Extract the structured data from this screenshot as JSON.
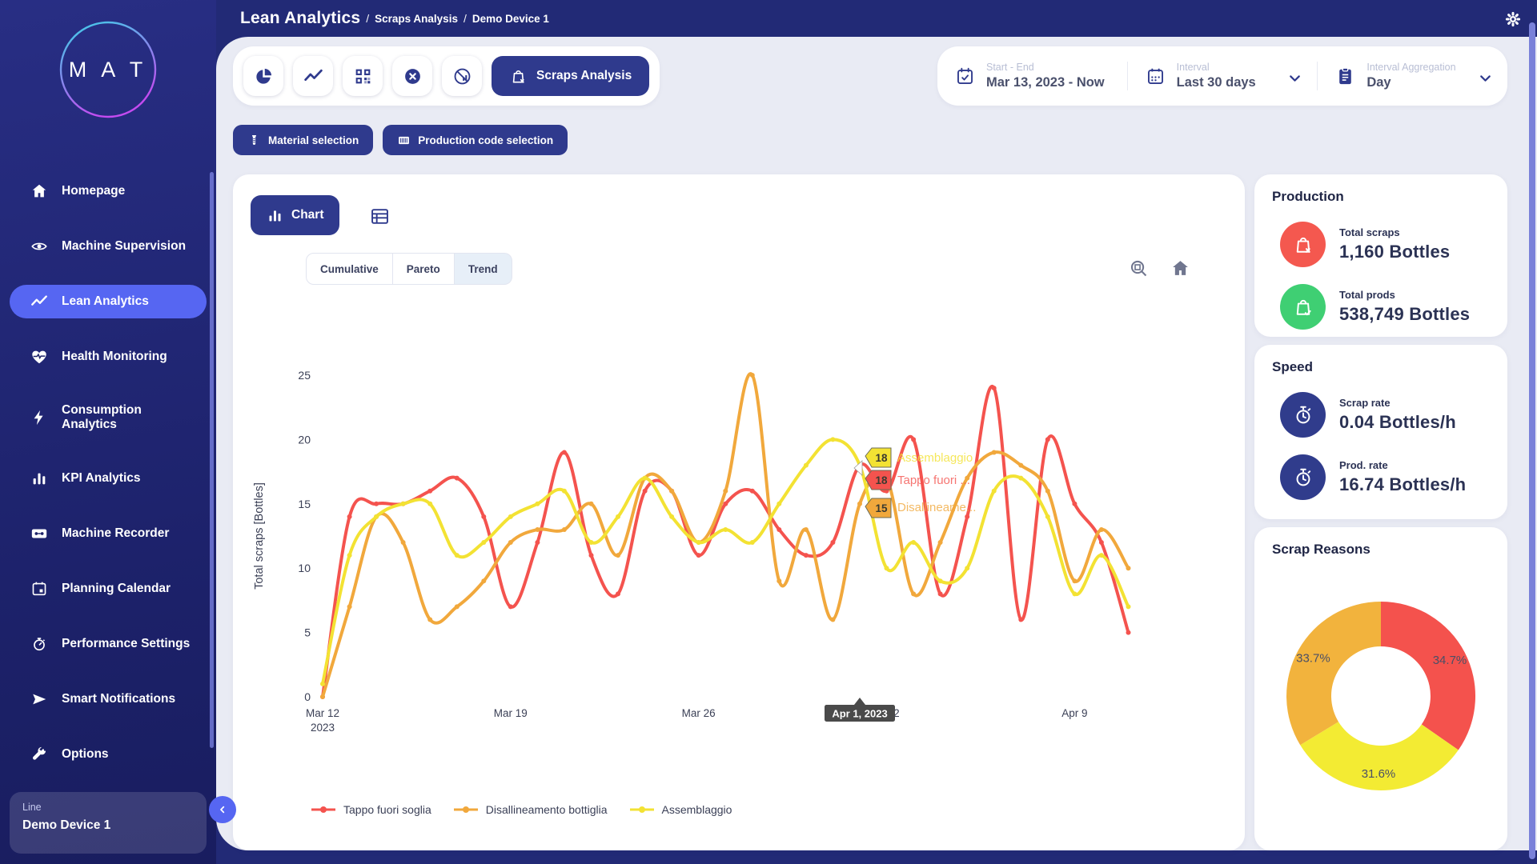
{
  "app": {
    "brand_letters": "M A T",
    "title": "Lean Analytics",
    "sep": "/",
    "breadcrumbs": [
      "Scraps Analysis",
      "Demo Device 1"
    ]
  },
  "sidebar": {
    "items": [
      {
        "id": "homepage",
        "label": "Homepage",
        "icon": "home-icon",
        "active": false
      },
      {
        "id": "machine-supervision",
        "label": "Machine Supervision",
        "icon": "eye-icon",
        "active": false
      },
      {
        "id": "lean-analytics",
        "label": "Lean Analytics",
        "icon": "trend-icon",
        "active": true
      },
      {
        "id": "health-monitoring",
        "label": "Health Monitoring",
        "icon": "heart-pulse-icon",
        "active": false
      },
      {
        "id": "consumption-analytics",
        "label": "Consumption Analytics",
        "icon": "bolt-icon",
        "active": false
      },
      {
        "id": "kpi-analytics",
        "label": "KPI Analytics",
        "icon": "bar-chart-icon",
        "active": false
      },
      {
        "id": "machine-recorder",
        "label": "Machine Recorder",
        "icon": "cassette-icon",
        "active": false
      },
      {
        "id": "planning-calendar",
        "label": "Planning Calendar",
        "icon": "calendar-icon",
        "active": false
      },
      {
        "id": "performance-settings",
        "label": "Performance Settings",
        "icon": "gauge-icon",
        "active": false
      },
      {
        "id": "smart-notifications",
        "label": "Smart Notifications",
        "icon": "send-icon",
        "active": false
      },
      {
        "id": "options",
        "label": "Options",
        "icon": "wrench-icon",
        "active": false
      }
    ],
    "device": {
      "label": "Line",
      "name": "Demo Device 1"
    }
  },
  "toolbar": {
    "icon_buttons": [
      {
        "icon": "pie-chart-icon"
      },
      {
        "icon": "trend-line-icon"
      },
      {
        "icon": "qr-code-icon"
      },
      {
        "icon": "x-circle-icon"
      },
      {
        "icon": "no-data-chart-icon"
      }
    ],
    "analysis_button": {
      "label": "Scraps Analysis",
      "icon": "bag-x-icon"
    },
    "filters": [
      {
        "label": "Start - End",
        "value": "Mar 13, 2023 - Now",
        "icon": "calendar-check-icon",
        "chevron": false
      },
      {
        "label": "Interval",
        "value": "Last 30 days",
        "icon": "calendar-days-icon",
        "chevron": true
      },
      {
        "label": "Interval Aggregation",
        "value": "Day",
        "icon": "clipboard-icon",
        "chevron": true
      }
    ],
    "selection_buttons": [
      {
        "label": "Material selection",
        "icon": "material-icon"
      },
      {
        "label": "Production code selection",
        "icon": "barcode-icon"
      }
    ]
  },
  "chart_card": {
    "chart_button": "Chart",
    "tabs": [
      {
        "label": "Cumulative",
        "active": false
      },
      {
        "label": "Pareto",
        "active": false
      },
      {
        "label": "Trend",
        "active": true
      }
    ]
  },
  "chart_data": {
    "type": "line",
    "ylabel": "Total scraps [Bottles]",
    "ylim": [
      0,
      25
    ],
    "yticks": [
      0,
      5,
      10,
      15,
      20,
      25
    ],
    "xticks": [
      {
        "day": 0,
        "label": "Mar 12",
        "sublabel": "2023"
      },
      {
        "day": 7,
        "label": "Mar 19",
        "sublabel": ""
      },
      {
        "day": 14,
        "label": "Mar 26",
        "sublabel": ""
      },
      {
        "day": 21,
        "label": "Apr 2",
        "sublabel": ""
      },
      {
        "day": 28,
        "label": "Apr 9",
        "sublabel": ""
      }
    ],
    "series": [
      {
        "name": "Tappo fuori soglia",
        "color": "#F4534E",
        "values": [
          0,
          14,
          15,
          15,
          16,
          17,
          14,
          7,
          12,
          19,
          11,
          8,
          16,
          16,
          11,
          15,
          16,
          13,
          11,
          12,
          18,
          16,
          20,
          8,
          14,
          24,
          6,
          20,
          15,
          12,
          5
        ]
      },
      {
        "name": "Disallineamento bottiglia",
        "color": "#F1A83C",
        "values": [
          0,
          7,
          14,
          12,
          6,
          7,
          9,
          12,
          13,
          13,
          15,
          11,
          17,
          16,
          12,
          16,
          25,
          9,
          13,
          6,
          15,
          17,
          8,
          12,
          17,
          19,
          18,
          16,
          9,
          13,
          10
        ]
      },
      {
        "name": "Assemblaggio",
        "color": "#F3E233",
        "values": [
          1,
          11,
          14,
          15,
          15,
          11,
          12,
          14,
          15,
          16,
          12,
          14,
          17,
          14,
          12,
          13,
          12,
          15,
          18,
          20,
          18,
          10,
          12,
          9,
          10,
          16,
          17,
          14,
          8,
          11,
          7
        ]
      }
    ],
    "tooltip": {
      "day": 20,
      "axis_label": "Apr 1, 2023",
      "entries": [
        {
          "value": "18",
          "label": "Assemblaggio",
          "color": "#F3E233"
        },
        {
          "value": "18",
          "label": "Tappo fuori ...",
          "color": "#F4534E"
        },
        {
          "value": "15",
          "label": "Disallineame...",
          "color": "#F1A83C"
        }
      ]
    }
  },
  "panels": {
    "production": {
      "title": "Production",
      "stats": [
        {
          "icon": "bag-x-icon",
          "icon_bg": "#F4584F",
          "label": "Total scraps",
          "value": "1,160 Bottles"
        },
        {
          "icon": "bag-check-icon",
          "icon_bg": "#3FCF73",
          "label": "Total prods",
          "value": "538,749 Bottles"
        }
      ]
    },
    "speed": {
      "title": "Speed",
      "stats": [
        {
          "icon": "stopwatch-icon",
          "icon_bg": "#303C8C",
          "label": "Scrap rate",
          "value": "0.04 Bottles/h"
        },
        {
          "icon": "stopwatch-icon",
          "icon_bg": "#303C8C",
          "label": "Prod. rate",
          "value": "16.74 Bottles/h"
        }
      ]
    },
    "scrap_reasons": {
      "title": "Scrap Reasons",
      "donut": {
        "slices": [
          {
            "label": "34.7%",
            "value": 34.7,
            "color": "#F4524D"
          },
          {
            "label": "31.6%",
            "value": 31.6,
            "color": "#F3EB33"
          },
          {
            "label": "33.7%",
            "value": 33.7,
            "color": "#F2B33D"
          }
        ]
      }
    }
  }
}
